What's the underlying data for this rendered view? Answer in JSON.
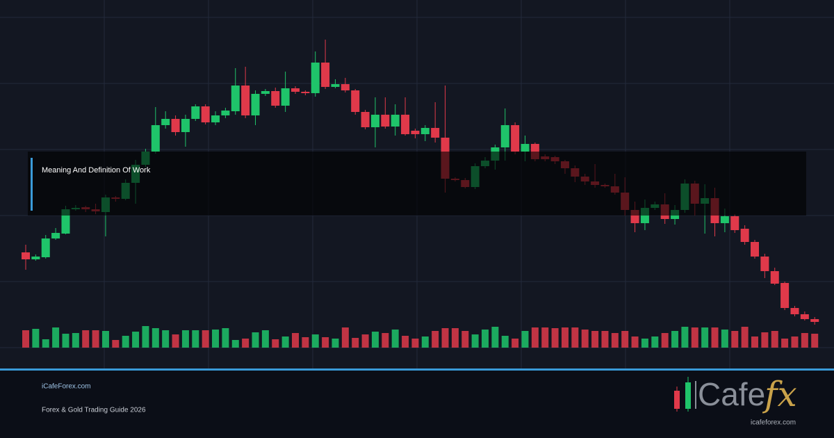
{
  "overlay_title": "Meaning And Definition Of Work",
  "footer": {
    "site": "iCafeForex.com",
    "tagline": "Forex & Gold Trading Guide 2026"
  },
  "logo": {
    "word": "Cafe",
    "accent": "fx",
    "url": "icafeforex.com"
  },
  "chart_data": {
    "type": "candlestick",
    "ylim": [
      0,
      475
    ],
    "up_color": "#1fc46a",
    "down_color": "#e0394a",
    "open": [
      137,
      127,
      130,
      157,
      164,
      199,
      202,
      199,
      195,
      216,
      214,
      237,
      263,
      282,
      320,
      329,
      310,
      329,
      347,
      324,
      334,
      340,
      377,
      334,
      365,
      369,
      348,
      373,
      368,
      366,
      410,
      375,
      379,
      370,
      339,
      317,
      335,
      318,
      335,
      312,
      307,
      316,
      302,
      243,
      241,
      231,
      261,
      269,
      288,
      320,
      282,
      293,
      275,
      274,
      268,
      258,
      246,
      239,
      234,
      232,
      223,
      198,
      179,
      201,
      206,
      185,
      198,
      236,
      207,
      215,
      179,
      189,
      171,
      152,
      131,
      110,
      93,
      57,
      48,
      41
    ],
    "high": [
      148,
      134,
      162,
      172,
      204,
      205,
      204,
      207,
      220,
      218,
      242,
      270,
      286,
      346,
      340,
      334,
      335,
      350,
      350,
      340,
      345,
      402,
      404,
      370,
      372,
      374,
      397,
      376,
      370,
      426,
      443,
      386,
      388,
      372,
      342,
      360,
      360,
      350,
      360,
      315,
      320,
      353,
      377,
      245,
      244,
      265,
      274,
      292,
      344,
      324,
      305,
      295,
      278,
      276,
      270,
      262,
      250,
      264,
      236,
      250,
      245,
      210,
      213,
      210,
      222,
      205,
      242,
      240,
      235,
      230,
      200,
      192,
      176,
      155,
      135,
      115,
      95,
      60,
      52,
      44
    ],
    "low": [
      112,
      125,
      128,
      155,
      163,
      197,
      195,
      192,
      160,
      210,
      212,
      207,
      260,
      279,
      315,
      305,
      289,
      326,
      321,
      320,
      330,
      335,
      330,
      320,
      362,
      345,
      339,
      365,
      363,
      361,
      372,
      373,
      367,
      335,
      314,
      288,
      315,
      305,
      305,
      301,
      297,
      295,
      223,
      239,
      229,
      228,
      258,
      256,
      269,
      278,
      268,
      268,
      268,
      264,
      250,
      238,
      234,
      230,
      230,
      220,
      190,
      166,
      169,
      198,
      178,
      177,
      194,
      190,
      164,
      160,
      166,
      165,
      148,
      128,
      100,
      90,
      54,
      45,
      39,
      33
    ],
    "close": [
      127,
      131,
      157,
      165,
      199,
      201,
      199,
      196,
      216,
      214,
      237,
      263,
      282,
      320,
      329,
      310,
      329,
      347,
      324,
      334,
      341,
      377,
      334,
      365,
      369,
      348,
      373,
      368,
      366,
      410,
      375,
      379,
      370,
      339,
      317,
      335,
      318,
      335,
      307,
      307,
      316,
      302,
      243,
      241,
      231,
      261,
      269,
      288,
      320,
      282,
      293,
      271,
      271,
      268,
      258,
      246,
      239,
      234,
      232,
      223,
      198,
      179,
      201,
      206,
      185,
      198,
      236,
      207,
      215,
      179,
      189,
      169,
      152,
      131,
      110,
      92,
      57,
      48,
      41,
      37
    ],
    "volume": [
      25,
      27,
      12,
      29,
      20,
      21,
      25,
      25,
      24,
      11,
      17,
      23,
      31,
      28,
      25,
      19,
      25,
      25,
      25,
      26,
      28,
      11,
      13,
      22,
      25,
      12,
      16,
      21,
      15,
      19,
      15,
      13,
      29,
      14,
      19,
      23,
      21,
      26,
      17,
      13,
      16,
      24,
      28,
      28,
      24,
      19,
      26,
      30,
      17,
      13,
      24,
      29,
      29,
      28,
      29,
      29,
      26,
      24,
      24,
      21,
      24,
      16,
      13,
      16,
      21,
      24,
      30,
      29,
      29,
      29,
      26,
      24,
      30,
      16,
      22,
      24,
      13,
      16,
      21,
      20
    ]
  }
}
